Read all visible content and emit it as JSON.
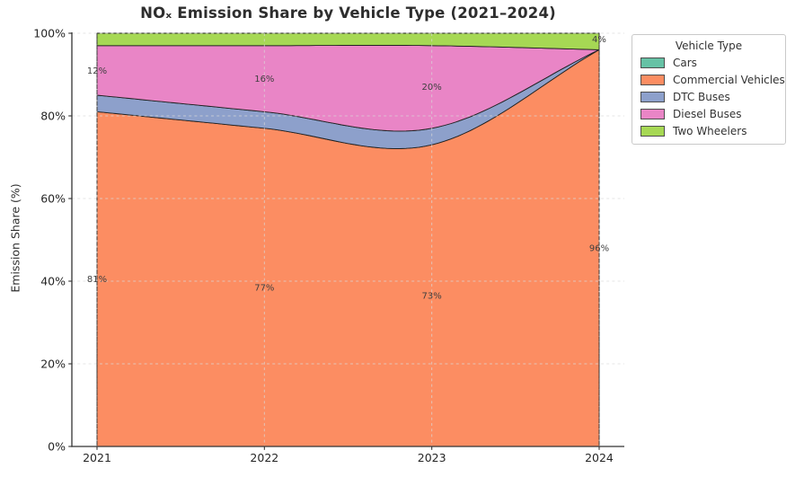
{
  "chart_data": {
    "type": "area",
    "stacked": true,
    "title": "NOₓ Emission Share by Vehicle Type (2021–2024)",
    "xlabel": "",
    "ylabel": "Emission Share (%)",
    "ylim": [
      0,
      100
    ],
    "x": [
      2021,
      2022,
      2023,
      2024
    ],
    "xticks": [
      "2021",
      "2022",
      "2023",
      "2024"
    ],
    "ytick_values": [
      0,
      20,
      40,
      60,
      80,
      100
    ],
    "ytick_labels": [
      "0%",
      "20%",
      "40%",
      "60%",
      "80%",
      "100%"
    ],
    "grid": true,
    "smooth": true,
    "series": [
      {
        "name": "Cars",
        "color": "#66c2a5",
        "values": [
          0,
          0,
          0,
          0
        ]
      },
      {
        "name": "Commercial Vehicles",
        "color": "#fc8d62",
        "values": [
          81,
          77,
          73,
          96
        ]
      },
      {
        "name": "DTC Buses",
        "color": "#8da0cb",
        "values": [
          4,
          4,
          4,
          0
        ]
      },
      {
        "name": "Diesel Buses",
        "color": "#e985c6",
        "values": [
          12,
          16,
          20,
          0
        ]
      },
      {
        "name": "Two Wheelers",
        "color": "#a6d854",
        "values": [
          3,
          3,
          3,
          4
        ]
      }
    ],
    "annotations": [
      {
        "x": 2021,
        "y": 40.5,
        "text": "81%"
      },
      {
        "x": 2021,
        "y": 91.0,
        "text": "12%"
      },
      {
        "x": 2022,
        "y": 38.5,
        "text": "77%"
      },
      {
        "x": 2022,
        "y": 89.0,
        "text": "16%"
      },
      {
        "x": 2023,
        "y": 36.5,
        "text": "73%"
      },
      {
        "x": 2023,
        "y": 87.0,
        "text": "20%"
      },
      {
        "x": 2024,
        "y": 48.0,
        "text": "96%"
      },
      {
        "x": 2024,
        "y": 98.6,
        "text": "4%"
      }
    ],
    "reference_lines_x": [
      2021,
      2024
    ],
    "legend": {
      "title": "Vehicle Type",
      "position": "outside-upper-right"
    },
    "colors": {
      "edge": "#222222",
      "grid": "#d9d9d9",
      "reference_line": "#3a3a3a",
      "spine": "#333333",
      "tick_text": "#262626",
      "annotation_text": "#3f3f3f"
    }
  }
}
